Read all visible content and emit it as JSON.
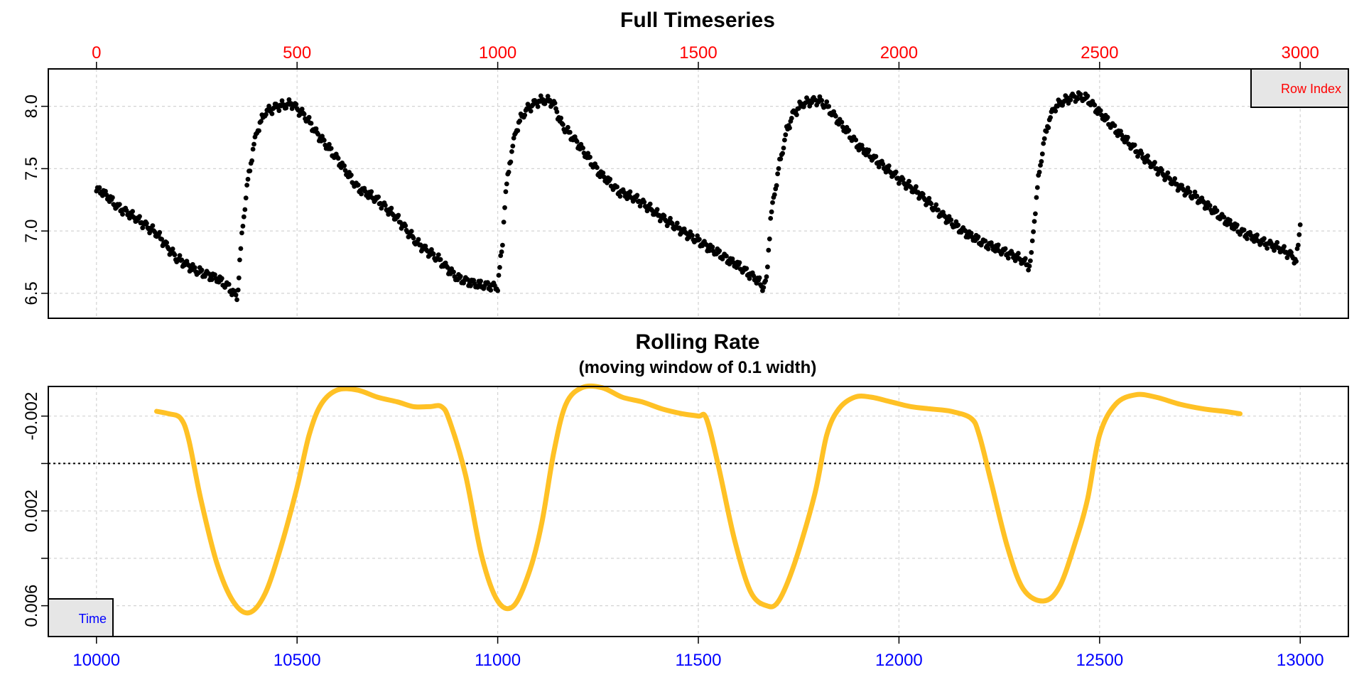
{
  "chart_data": [
    {
      "type": "scatter",
      "title": "Full Timeseries",
      "subtitle": "",
      "xlabel": "",
      "ylabel": "",
      "top_axis_label": "Row Index",
      "top_axis_ticks": [
        "0",
        "500",
        "1000",
        "1500",
        "2000",
        "2500",
        "3000"
      ],
      "top_axis_color": "#ff0000",
      "xlim": [
        -120,
        3120
      ],
      "ylim": [
        6.3,
        8.3
      ],
      "y_ticks": [
        "6.5",
        "7.0",
        "7.5",
        "8.0"
      ],
      "grid": true,
      "point_color": "#000000",
      "series": [
        {
          "x": [
            0,
            10,
            20,
            30,
            50,
            80,
            100,
            150,
            200,
            250,
            300,
            330,
            350,
            353,
            357,
            365,
            375,
            390,
            400,
            420,
            450,
            470,
            490,
            495,
            500,
            520,
            550,
            600,
            650,
            700,
            750,
            800,
            850,
            900,
            950,
            980,
            1000,
            1005,
            1012,
            1015,
            1020,
            1030,
            1045,
            1060,
            1075,
            1090,
            1110,
            1130,
            1140,
            1160,
            1200,
            1250,
            1300,
            1350,
            1400,
            1450,
            1500,
            1550,
            1600,
            1650,
            1660,
            1670,
            1675,
            1680,
            1700,
            1720,
            1735,
            1750,
            1760,
            1780,
            1800,
            1820,
            1850,
            1900,
            1950,
            2000,
            2050,
            2100,
            2150,
            2200,
            2250,
            2300,
            2325,
            2330,
            2335,
            2345,
            2360,
            2375,
            2390,
            2410,
            2430,
            2450,
            2470,
            2500,
            2550,
            2600,
            2650,
            2700,
            2750,
            2800,
            2850,
            2900,
            2950,
            2980,
            2990,
            2995,
            3000
          ],
          "y": [
            7.32,
            7.33,
            7.3,
            7.27,
            7.2,
            7.14,
            7.1,
            6.98,
            6.78,
            6.68,
            6.62,
            6.55,
            6.47,
            6.55,
            6.75,
            7.05,
            7.35,
            7.65,
            7.8,
            7.95,
            8.0,
            8.01,
            8.02,
            8.0,
            7.98,
            7.92,
            7.78,
            7.58,
            7.35,
            7.25,
            7.1,
            6.9,
            6.78,
            6.62,
            6.57,
            6.56,
            6.55,
            6.7,
            6.9,
            7.1,
            7.3,
            7.55,
            7.8,
            7.92,
            7.98,
            8.02,
            8.05,
            8.04,
            8.02,
            7.85,
            7.7,
            7.48,
            7.32,
            7.25,
            7.13,
            7.02,
            6.92,
            6.82,
            6.72,
            6.6,
            6.55,
            6.6,
            6.85,
            7.1,
            7.5,
            7.8,
            7.93,
            7.99,
            8.02,
            8.04,
            8.05,
            8.0,
            7.88,
            7.68,
            7.55,
            7.42,
            7.3,
            7.15,
            7.02,
            6.92,
            6.85,
            6.78,
            6.72,
            6.8,
            7.0,
            7.35,
            7.7,
            7.9,
            8.0,
            8.04,
            8.07,
            8.08,
            8.06,
            7.95,
            7.78,
            7.62,
            7.48,
            7.35,
            7.25,
            7.12,
            7.0,
            6.92,
            6.86,
            6.8,
            6.76,
            6.88,
            7.05
          ]
        }
      ]
    },
    {
      "type": "line",
      "title": "Rolling Rate",
      "subtitle": "(moving window of 0.1 width)",
      "xlabel": "",
      "ylabel": "",
      "bottom_axis_label": "Time",
      "x_ticks": [
        "10000",
        "10500",
        "11000",
        "11500",
        "12000",
        "12500",
        "13000"
      ],
      "x_axis_color": "#0000ff",
      "xlim": [
        9880,
        13120
      ],
      "ylim": [
        0.0073,
        -0.00325
      ],
      "y_inverted": true,
      "y_ticks": [
        "-0.002",
        "0.002",
        "0.006"
      ],
      "y_minor_ticks": [
        0,
        0.004
      ],
      "grid": true,
      "reference_line": 0,
      "line_color": "#ffc125",
      "series": [
        {
          "x": [
            10150,
            10180,
            10210,
            10230,
            10260,
            10300,
            10340,
            10380,
            10420,
            10460,
            10500,
            10530,
            10560,
            10600,
            10650,
            10700,
            10750,
            10790,
            10830,
            10860,
            10880,
            10920,
            10960,
            11000,
            11040,
            11080,
            11110,
            11140,
            11170,
            11210,
            11260,
            11310,
            11360,
            11410,
            11460,
            11500,
            11520,
            11550,
            11590,
            11630,
            11670,
            11700,
            11740,
            11790,
            11820,
            11850,
            11890,
            11930,
            11980,
            12030,
            12080,
            12130,
            12180,
            12200,
            12230,
            12270,
            12310,
            12360,
            12400,
            12440,
            12470,
            12500,
            12540,
            12590,
            12640,
            12700,
            12760,
            12810,
            12850
          ],
          "y": [
            -0.0022,
            -0.0021,
            -0.0019,
            -0.001,
            0.0015,
            0.0042,
            0.0058,
            0.0063,
            0.0055,
            0.0035,
            0.001,
            -0.0012,
            -0.0025,
            -0.0031,
            -0.0031,
            -0.0028,
            -0.0026,
            -0.0024,
            -0.0024,
            -0.0024,
            -0.0018,
            0.0005,
            0.0039,
            0.0058,
            0.006,
            0.0045,
            0.0025,
            -0.0005,
            -0.0025,
            -0.0032,
            -0.0032,
            -0.0028,
            -0.0026,
            -0.0023,
            -0.0021,
            -0.002,
            -0.0019,
            0.0001,
            0.0032,
            0.0054,
            0.006,
            0.0058,
            0.0042,
            0.0013,
            -0.0012,
            -0.0023,
            -0.0028,
            -0.0028,
            -0.0026,
            -0.0024,
            -0.0023,
            -0.0022,
            -0.0019,
            -0.0012,
            0.0008,
            0.0035,
            0.0053,
            0.0058,
            0.0052,
            0.0033,
            0.0015,
            -0.0012,
            -0.0025,
            -0.0029,
            -0.0028,
            -0.0025,
            -0.0023,
            -0.0022,
            -0.0021
          ]
        }
      ]
    }
  ]
}
